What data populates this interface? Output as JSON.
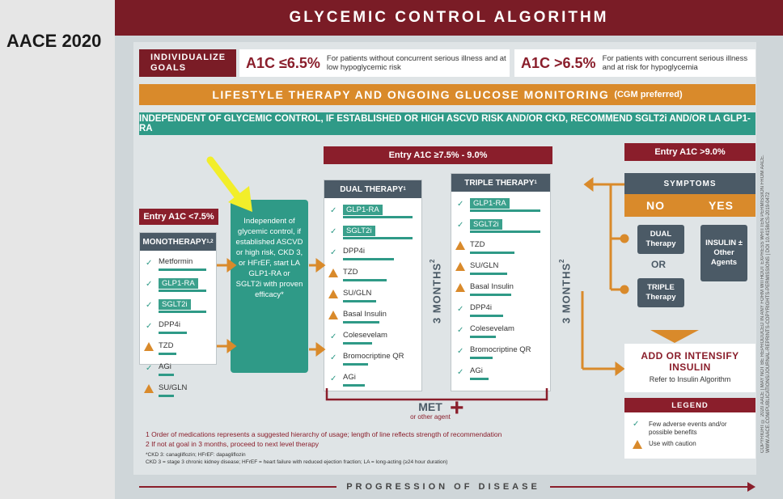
{
  "slide_label": "AACE 2020",
  "title": "GLYCEMIC CONTROL ALGORITHM",
  "goals": {
    "label": "INDIVIDUALIZE GOALS",
    "low_target": "A1C ≤6.5%",
    "low_desc": "For patients without concurrent serious illness and at low hypoglycemic risk",
    "high_target": "A1C >6.5%",
    "high_desc": "For patients with concurrent serious illness and at risk for hypoglycemia"
  },
  "lifestyle": {
    "text": "LIFESTYLE THERAPY AND ONGOING GLUCOSE MONITORING",
    "note": "(CGM preferred)"
  },
  "independent_banner": "INDEPENDENT OF GLYCEMIC CONTROL, IF ESTABLISHED OR HIGH ASCVD RISK AND/OR CKD, RECOMMEND SGLT2i AND/OR LA GLP1-RA",
  "entries": {
    "low": "Entry A1C <7.5%",
    "mid": "Entry A1C ≥7.5% - 9.0%",
    "high": "Entry A1C >9.0%"
  },
  "monotherapy": {
    "title": "MONOTHERAPY",
    "sup": "1,2",
    "drugs": [
      {
        "name": "Metformin",
        "caution": false,
        "highlight": false
      },
      {
        "name": "GLP1-RA",
        "caution": false,
        "highlight": true
      },
      {
        "name": "SGLT2i",
        "caution": false,
        "highlight": true
      },
      {
        "name": "DPP4i",
        "caution": false,
        "highlight": false
      },
      {
        "name": "TZD",
        "caution": true,
        "highlight": false
      },
      {
        "name": "AGi",
        "caution": false,
        "highlight": false
      },
      {
        "name": "SU/GLN",
        "caution": true,
        "highlight": false
      }
    ]
  },
  "green_box": "Independent of glycemic control, if established ASCVD or high risk, CKD 3, or HFrEF, start LA GLP1-RA or SGLT2i with proven efficacy*",
  "dual": {
    "title": "DUAL THERAPY",
    "sup": "1",
    "drugs": [
      {
        "name": "GLP1-RA",
        "caution": false,
        "highlight": true
      },
      {
        "name": "SGLT2i",
        "caution": false,
        "highlight": true
      },
      {
        "name": "DPP4i",
        "caution": false,
        "highlight": false
      },
      {
        "name": "TZD",
        "caution": true,
        "highlight": false
      },
      {
        "name": "SU/GLN",
        "caution": true,
        "highlight": false
      },
      {
        "name": "Basal Insulin",
        "caution": true,
        "highlight": false
      },
      {
        "name": "Colesevelam",
        "caution": false,
        "highlight": false
      },
      {
        "name": "Bromocriptine QR",
        "caution": false,
        "highlight": false
      },
      {
        "name": "AGi",
        "caution": false,
        "highlight": false
      }
    ]
  },
  "triple": {
    "title": "TRIPLE THERAPY",
    "sup": "1",
    "drugs": [
      {
        "name": "GLP1-RA",
        "caution": false,
        "highlight": true
      },
      {
        "name": "SGLT2i",
        "caution": false,
        "highlight": true
      },
      {
        "name": "TZD",
        "caution": true,
        "highlight": false
      },
      {
        "name": "SU/GLN",
        "caution": true,
        "highlight": false
      },
      {
        "name": "Basal Insulin",
        "caution": true,
        "highlight": false
      },
      {
        "name": "DPP4i",
        "caution": false,
        "highlight": false
      },
      {
        "name": "Colesevelam",
        "caution": false,
        "highlight": false
      },
      {
        "name": "Bromocriptine QR",
        "caution": false,
        "highlight": false
      },
      {
        "name": "AGi",
        "caution": false,
        "highlight": false
      }
    ]
  },
  "months_label": "3 MONTHS",
  "months_sup": "2",
  "met": {
    "label": "MET",
    "sub": "or other agent"
  },
  "symptoms": {
    "title": "SYMPTOMS",
    "no": "NO",
    "yes": "YES",
    "dual": "DUAL Therapy",
    "or": "OR",
    "triple": "TRIPLE Therapy",
    "insulin": "INSULIN ± Other Agents"
  },
  "add_insulin": {
    "title": "ADD OR INTENSIFY INSULIN",
    "sub": "Refer to Insulin Algorithm"
  },
  "legend": {
    "title": "LEGEND",
    "few": "Few adverse events and/or possible benefits",
    "caution": "Use with caution"
  },
  "footnotes": {
    "n1": "1    Order of medications represents a suggested hierarchy of usage; length of line reflects strength of recommendation",
    "n2": "2    If not at goal in 3 months, proceed to next level therapy",
    "ckd": "*CKD 3: canagliflozin; HFrEF: dapagliflozin",
    "abbr": "CKD 3 = stage 3 chronic kidney disease; HFrEF = heart failure with reduced ejection fraction; LA = long-acting (≥24 hour duration)"
  },
  "progression": "PROGRESSION OF DISEASE",
  "copyright": "COPYRIGHT © 2020 AACE | MAY NOT BE REPRODUCED IN ANY FORM WITHOUT EXPRESS WRITTEN PERMISSION FROM AACE. WWW.AACE.COM/PUBLICATIONS/JOURNAL-REPRINTS-COPYRIGHTS-PERMISSIONS | DOI 10.4158/CS-2019-0472",
  "colors": {
    "maroon": "#8a1e2b",
    "teal": "#2f9a87",
    "orange": "#d98a2b",
    "slate": "#4b5a66",
    "arrow": "#f2ee2a"
  },
  "line_strength": {
    "monotherapy": [
      0.92,
      0.92,
      0.92,
      0.55,
      0.35,
      0.3,
      0.3
    ],
    "dual": [
      0.95,
      0.95,
      0.7,
      0.6,
      0.45,
      0.5,
      0.4,
      0.35,
      0.3
    ],
    "triple": [
      0.95,
      0.95,
      0.6,
      0.5,
      0.55,
      0.45,
      0.35,
      0.3,
      0.25
    ]
  }
}
